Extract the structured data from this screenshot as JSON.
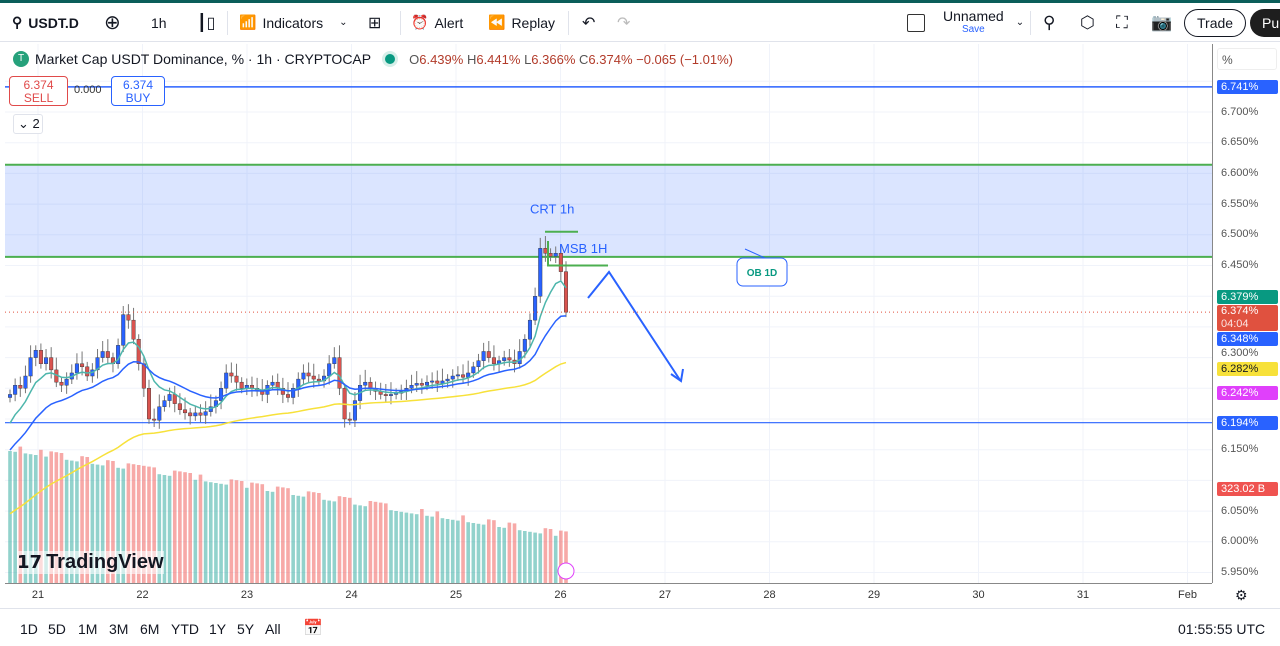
{
  "toolbar": {
    "symbol": "USDT.D",
    "interval": "1h",
    "indicators": "Indicators",
    "alert": "Alert",
    "replay": "Replay",
    "layout_name": "Unnamed",
    "layout_save": "Save",
    "trade": "Trade",
    "publish": "Pub"
  },
  "legend": {
    "title": "Market Cap USDT Dominance, % · 1h · CRYPTOCAP",
    "o_lbl": "O",
    "o": "6.439%",
    "h_lbl": "H",
    "h": "6.441%",
    "l_lbl": "L",
    "l": "6.366%",
    "c_lbl": "C",
    "c": "6.374%",
    "change": "−0.065 (−1.01%)"
  },
  "trade_widget": {
    "sell_price": "6.374",
    "sell": "SELL",
    "spread": "0.000",
    "buy_price": "6.374",
    "buy": "BUY"
  },
  "collapse_count": "2",
  "price_axis": {
    "unit": "%",
    "labels": [
      "6.700%",
      "6.650%",
      "6.600%",
      "6.550%",
      "6.500%",
      "6.450%",
      "6.300%",
      "6.150%",
      "6.050%",
      "6.000%",
      "5.950%"
    ],
    "tags": [
      {
        "text": "6.741%",
        "color": "#2962ff"
      },
      {
        "text": "6.379%",
        "color": "#089981"
      },
      {
        "text": "6.374%",
        "sub": "04:04",
        "color": "#e0513f"
      },
      {
        "text": "6.348%",
        "color": "#2962ff"
      },
      {
        "text": "6.282%",
        "color": "#f7e13a",
        "dark": true
      },
      {
        "text": "6.242%",
        "color": "#e040fb"
      },
      {
        "text": "6.194%",
        "color": "#2962ff"
      },
      {
        "text": "323.02 B",
        "color": "#ef5350"
      }
    ]
  },
  "time_axis": [
    "21",
    "22",
    "23",
    "24",
    "25",
    "26",
    "27",
    "28",
    "29",
    "30",
    "31",
    "Feb"
  ],
  "annotations": {
    "crt": "CRT 1h",
    "msb": "MSB 1H",
    "ob": "OB 1D"
  },
  "levels": {
    "top_line": 6.741,
    "bottom_line": 6.194,
    "zone_high": 6.614,
    "zone_low": 6.464
  },
  "chart_data": {
    "type": "candlestick",
    "ylim": [
      5.93,
      6.78
    ],
    "closes": [
      6.24,
      6.255,
      6.25,
      6.27,
      6.3,
      6.312,
      6.29,
      6.3,
      6.28,
      6.26,
      6.255,
      6.265,
      6.275,
      6.29,
      6.285,
      6.27,
      6.28,
      6.3,
      6.31,
      6.3,
      6.29,
      6.32,
      6.37,
      6.361,
      6.33,
      6.29,
      6.25,
      6.2,
      6.198,
      6.22,
      6.23,
      6.24,
      6.225,
      6.215,
      6.21,
      6.205,
      6.21,
      6.206,
      6.212,
      6.22,
      6.23,
      6.25,
      6.275,
      6.27,
      6.26,
      6.25,
      6.255,
      6.25,
      6.245,
      6.24,
      6.255,
      6.26,
      6.25,
      6.24,
      6.235,
      6.25,
      6.265,
      6.275,
      6.27,
      6.265,
      6.262,
      6.27,
      6.29,
      6.3,
      6.25,
      6.2,
      6.198,
      6.23,
      6.255,
      6.26,
      6.25,
      6.245,
      6.24,
      6.238,
      6.24,
      6.242,
      6.245,
      6.25,
      6.255,
      6.258,
      6.255,
      6.26,
      6.262,
      6.258,
      6.262,
      6.265,
      6.27,
      6.272,
      6.268,
      6.275,
      6.285,
      6.295,
      6.31,
      6.3,
      6.29,
      6.295,
      6.3,
      6.296,
      6.29,
      6.31,
      6.33,
      6.361,
      6.4,
      6.478,
      6.47,
      6.465,
      6.47,
      6.44,
      6.374
    ],
    "last_volume": "323.02 B"
  },
  "bottom": {
    "ranges": [
      "1D",
      "5D",
      "1M",
      "3M",
      "6M",
      "YTD",
      "1Y",
      "5Y",
      "All"
    ],
    "clock": "01:55:55 UTC"
  },
  "logo": "TradingView"
}
